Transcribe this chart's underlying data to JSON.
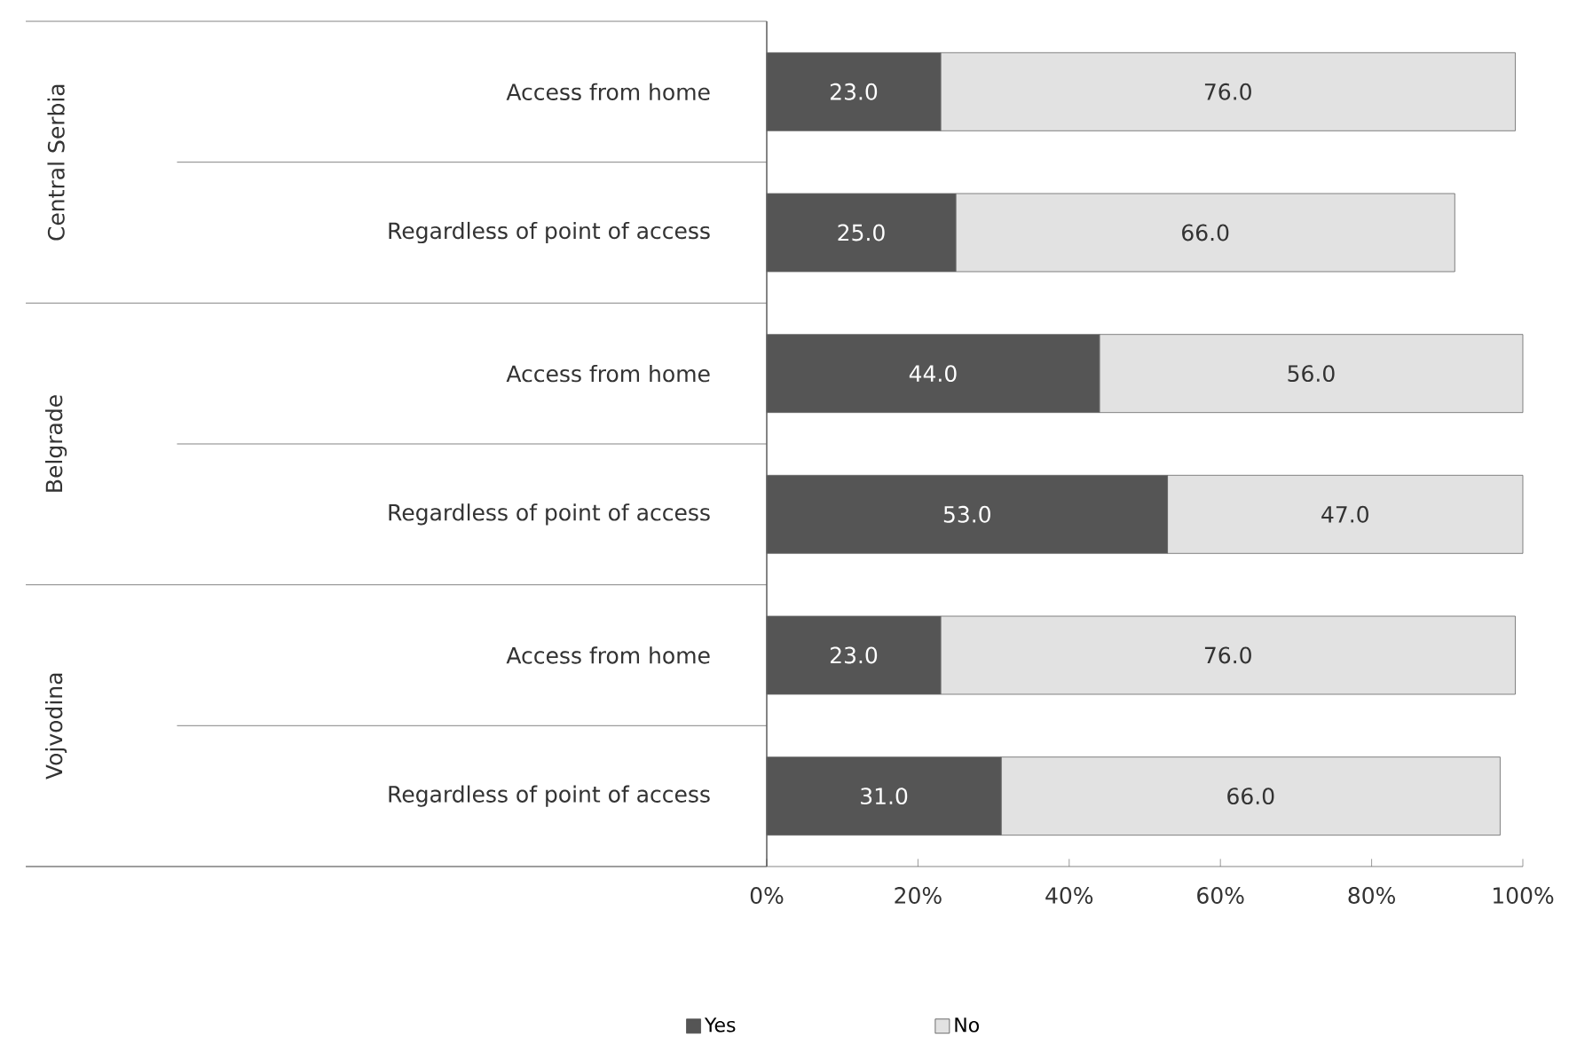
{
  "chart_data": {
    "type": "bar",
    "orientation": "horizontal",
    "stacked": true,
    "categories": [
      "Access from home",
      "Regardless of point of access",
      "Access from home",
      "Regardless of point of access",
      "Access from home",
      "Regardless of point of access"
    ],
    "series": [
      {
        "name": "Yes",
        "color": "#555555",
        "values": [
          23.0,
          25.0,
          44.0,
          53.0,
          23.0,
          31.0
        ],
        "value_labels": [
          "23.0",
          "25.0",
          "44.0",
          "53.0",
          "23.0",
          "31.0"
        ]
      },
      {
        "name": "No",
        "color": "#e2e2e2",
        "values": [
          76.0,
          66.0,
          56.0,
          47.0,
          76.0,
          66.0
        ],
        "value_labels": [
          "76.0",
          "66.0",
          "56.0",
          "47.0",
          "76.0",
          "66.0"
        ]
      }
    ],
    "xlim": [
      0,
      100
    ],
    "xticks": [
      {
        "value": 0,
        "label": "0%"
      },
      {
        "value": 20,
        "label": "20%"
      },
      {
        "value": 40,
        "label": "40%"
      },
      {
        "value": 60,
        "label": "60%"
      },
      {
        "value": 80,
        "label": "80%"
      },
      {
        "value": 100,
        "label": "100%"
      }
    ],
    "annotations": [
      "Central Serbia",
      "Belgrade",
      "Vojvodina"
    ],
    "legend": "bottom",
    "grid": false
  }
}
